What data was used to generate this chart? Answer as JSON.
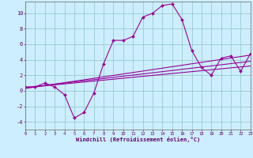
{
  "xlabel": "Windchill (Refroidissement éolien,°C)",
  "bg_color": "#cceeff",
  "grid_color": "#99cccc",
  "line_color": "#990099",
  "x_ticks": [
    0,
    1,
    2,
    3,
    4,
    5,
    6,
    7,
    8,
    9,
    10,
    11,
    12,
    13,
    14,
    15,
    16,
    17,
    18,
    19,
    20,
    21,
    22,
    23
  ],
  "y_ticks": [
    -4,
    -2,
    0,
    2,
    4,
    6,
    8,
    10
  ],
  "xlim": [
    0,
    23
  ],
  "ylim": [
    -5.0,
    11.5
  ],
  "curve1_x": [
    0,
    1,
    2,
    3,
    4,
    5,
    6,
    7,
    8,
    9,
    10,
    11,
    12,
    13,
    14,
    15,
    16,
    17,
    18,
    19,
    20,
    21,
    22,
    23
  ],
  "curve1_y": [
    0.5,
    0.5,
    1.0,
    0.5,
    -0.5,
    -3.5,
    -2.8,
    -0.3,
    3.5,
    6.5,
    6.5,
    7.0,
    9.5,
    10.0,
    11.0,
    11.2,
    9.2,
    5.2,
    3.0,
    2.0,
    4.2,
    4.5,
    2.5,
    4.8
  ],
  "line2_x": [
    0,
    23
  ],
  "line2_y": [
    0.4,
    3.2
  ],
  "line3_x": [
    0,
    23
  ],
  "line3_y": [
    0.4,
    3.8
  ],
  "line4_x": [
    0,
    23
  ],
  "line4_y": [
    0.3,
    4.6
  ]
}
